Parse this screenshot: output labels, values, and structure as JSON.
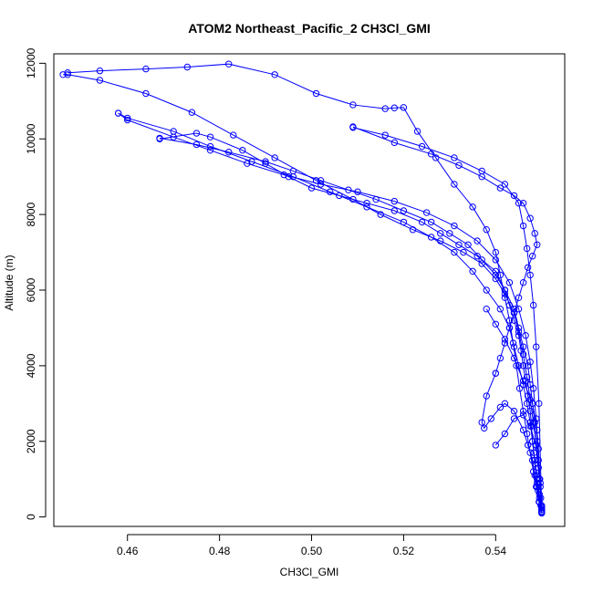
{
  "chart_data": {
    "type": "line",
    "title": "ATOM2 Northeast_Pacific_2 CH3Cl_GMI",
    "xlabel": "CH3Cl_GMI",
    "ylabel": "Altitude (m)",
    "xlim": [
      0.444,
      0.555
    ],
    "ylim": [
      -250,
      12250
    ],
    "xticks": [
      0.46,
      0.48,
      0.5,
      0.52,
      0.54
    ],
    "xtick_labels": [
      "0.46",
      "0.48",
      "0.50",
      "0.52",
      "0.54"
    ],
    "yticks": [
      0,
      2000,
      4000,
      6000,
      8000,
      10000,
      12000
    ],
    "ytick_labels": [
      "0",
      "2000",
      "4000",
      "6000",
      "8000",
      "10000",
      "12000"
    ],
    "grid": false,
    "marker": "open-circle",
    "color": "#0000ff",
    "series": [
      {
        "x": [
          0.55,
          0.5498,
          0.5495,
          0.5492,
          0.549,
          0.5488,
          0.5485,
          0.5483,
          0.548,
          0.5478,
          0.5475,
          0.547,
          0.5465,
          0.546,
          0.5455,
          0.545,
          0.544,
          0.543,
          0.542,
          0.54,
          0.537,
          0.534,
          0.53,
          0.526,
          0.52,
          0.514,
          0.508,
          0.502,
          0.496,
          0.49,
          0.482,
          0.475,
          0.467
        ],
        "y": [
          120,
          300,
          500,
          700,
          900,
          1100,
          1400,
          1700,
          2000,
          2400,
          2800,
          3200,
          3600,
          4000,
          4400,
          4800,
          5200,
          5600,
          6000,
          6400,
          6800,
          7200,
          7500,
          7800,
          8100,
          8400,
          8650,
          8900,
          9150,
          9400,
          9650,
          9850,
          10020
        ]
      },
      {
        "x": [
          0.467,
          0.475,
          0.478,
          0.485,
          0.49,
          0.495,
          0.5,
          0.506,
          0.512,
          0.518,
          0.524,
          0.528,
          0.532,
          0.536,
          0.54,
          0.542,
          0.544,
          0.545,
          0.546,
          0.547,
          0.5475,
          0.548,
          0.5485,
          0.549,
          0.5493,
          0.5496,
          0.5498,
          0.55
        ],
        "y": [
          10000,
          10150,
          10050,
          9700,
          9350,
          9000,
          8700,
          8500,
          8300,
          8100,
          7800,
          7500,
          7200,
          6900,
          6500,
          6000,
          5500,
          5000,
          4500,
          4000,
          3500,
          3000,
          2500,
          2000,
          1500,
          1000,
          500,
          150
        ]
      },
      {
        "x": [
          0.55,
          0.5495,
          0.549,
          0.5485,
          0.548,
          0.5475,
          0.5468,
          0.546,
          0.545,
          0.544,
          0.543,
          0.541,
          0.538,
          0.535,
          0.531,
          0.526,
          0.52,
          0.512,
          0.504,
          0.496,
          0.487,
          0.478,
          0.47,
          0.46,
          0.458
        ],
        "y": [
          200,
          600,
          1000,
          1500,
          2000,
          2500,
          3000,
          3500,
          4000,
          4500,
          5000,
          5500,
          6000,
          6500,
          7000,
          7400,
          7800,
          8200,
          8600,
          9000,
          9400,
          9800,
          10200,
          10550,
          10680
        ]
      },
      {
        "x": [
          0.458,
          0.46,
          0.47,
          0.478,
          0.486,
          0.494,
          0.502,
          0.51,
          0.518,
          0.525,
          0.531,
          0.536,
          0.54,
          0.543,
          0.545,
          0.5465,
          0.5475,
          0.5482,
          0.5488,
          0.5493,
          0.5497,
          0.55
        ],
        "y": [
          10680,
          10500,
          10050,
          9700,
          9350,
          9050,
          8800,
          8600,
          8350,
          8050,
          7700,
          7300,
          6800,
          6200,
          5500,
          4800,
          4100,
          3400,
          2600,
          1800,
          900,
          250
        ]
      },
      {
        "x": [
          0.55,
          0.5497,
          0.5493,
          0.5488,
          0.5482,
          0.5475,
          0.5468,
          0.546,
          0.545,
          0.544,
          0.542,
          0.54,
          0.537,
          0.533,
          0.528,
          0.522,
          0.515,
          0.509,
          0.501,
          0.492,
          0.483,
          0.474,
          0.464,
          0.454,
          0.447,
          0.446
        ],
        "y": [
          300,
          800,
          1300,
          1900,
          2500,
          3100,
          3700,
          4300,
          4900,
          5400,
          5900,
          6300,
          6700,
          7000,
          7300,
          7600,
          8000,
          8400,
          8900,
          9500,
          10100,
          10700,
          11200,
          11550,
          11700,
          11700
        ]
      },
      {
        "x": [
          0.447,
          0.454,
          0.464,
          0.473,
          0.482,
          0.492,
          0.501,
          0.509,
          0.516,
          0.518,
          0.52,
          0.523,
          0.527,
          0.531,
          0.535,
          0.538,
          0.54,
          0.541,
          0.542,
          0.543,
          0.5438,
          0.5445,
          0.5452,
          0.546,
          0.5468,
          0.5475,
          0.5482,
          0.5488,
          0.5494,
          0.55
        ],
        "y": [
          11750,
          11800,
          11850,
          11900,
          11980,
          11700,
          11200,
          10900,
          10800,
          10820,
          10830,
          10200,
          9500,
          8800,
          8200,
          7600,
          7000,
          6400,
          5800,
          5200,
          4600,
          4000,
          3400,
          2800,
          2200,
          1700,
          1200,
          800,
          400,
          100
        ]
      },
      {
        "x": [
          0.509,
          0.516,
          0.524,
          0.531,
          0.537,
          0.542,
          0.545,
          0.546,
          0.5468,
          0.5475,
          0.5482,
          0.5488,
          0.5494,
          0.55
        ],
        "y": [
          10300,
          10100,
          9800,
          9500,
          9150,
          8800,
          8300,
          7700,
          7100,
          6400,
          5600,
          4500,
          3000,
          200
        ]
      },
      {
        "x": [
          0.509,
          0.518,
          0.526,
          0.532,
          0.537,
          0.541,
          0.544,
          0.546,
          0.5475,
          0.5485,
          0.549,
          0.548,
          0.547,
          0.546,
          0.545,
          0.544,
          0.543,
          0.542,
          0.541,
          0.54
        ],
        "y": [
          10320,
          9900,
          9600,
          9300,
          9000,
          8700,
          8500,
          8300,
          7900,
          7500,
          7200,
          6900,
          6600,
          6200,
          5800,
          5400,
          5000,
          4600,
          4200,
          3800
        ]
      },
      {
        "x": [
          0.54,
          0.538,
          0.537,
          0.5375,
          0.539,
          0.541,
          0.542,
          0.544,
          0.546,
          0.547,
          0.548,
          0.5485,
          0.549,
          0.5495,
          0.55
        ],
        "y": [
          3800,
          3200,
          2500,
          2350,
          2600,
          2900,
          3000,
          2800,
          2300,
          1900,
          1500,
          1100,
          800,
          400,
          150
        ]
      },
      {
        "x": [
          0.54,
          0.542,
          0.544,
          0.546,
          0.5475,
          0.5487,
          0.5495,
          0.55
        ],
        "y": [
          1900,
          2200,
          2600,
          2700,
          2400,
          1900,
          1000,
          250
        ]
      },
      {
        "x": [
          0.538,
          0.54,
          0.542,
          0.544,
          0.546,
          0.548,
          0.549
        ],
        "y": [
          5500,
          5100,
          4700,
          4200,
          3600,
          3000,
          2300
        ]
      }
    ]
  }
}
